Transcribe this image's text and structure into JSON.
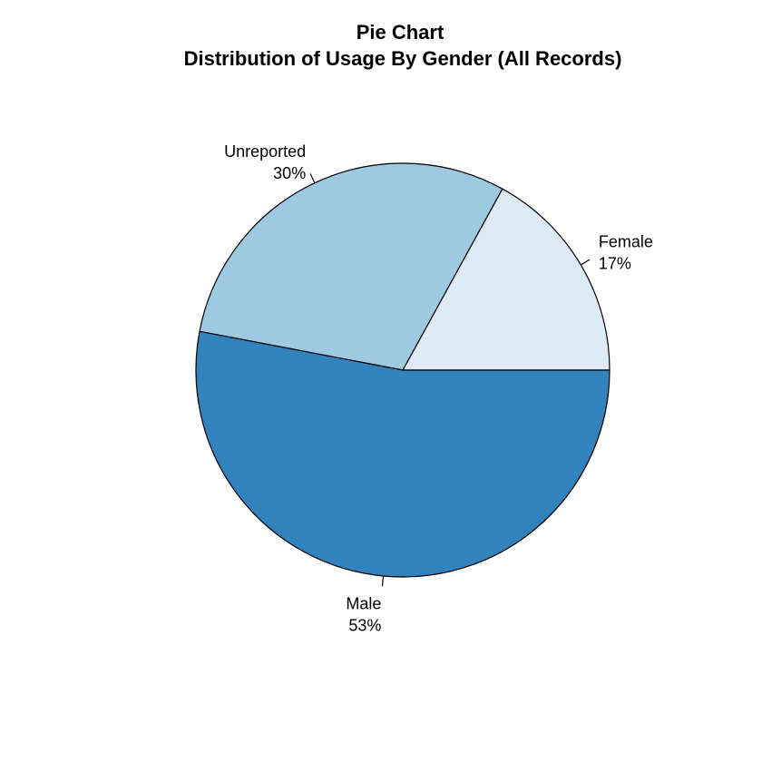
{
  "chart_data": {
    "type": "pie",
    "title": "Pie Chart",
    "subtitle": "Distribution of Usage By Gender (All Records)",
    "slices": [
      {
        "name": "Female",
        "percent_label": "17%",
        "value": 17,
        "color": "#deebf7"
      },
      {
        "name": "Unreported",
        "percent_label": "30%",
        "value": 30,
        "color": "#9ecae1"
      },
      {
        "name": "Male",
        "percent_label": "53%",
        "value": 53,
        "color": "#3182bd"
      }
    ],
    "direction": "counterclockwise",
    "start": "3 o'clock",
    "outline_color": "#000000"
  }
}
